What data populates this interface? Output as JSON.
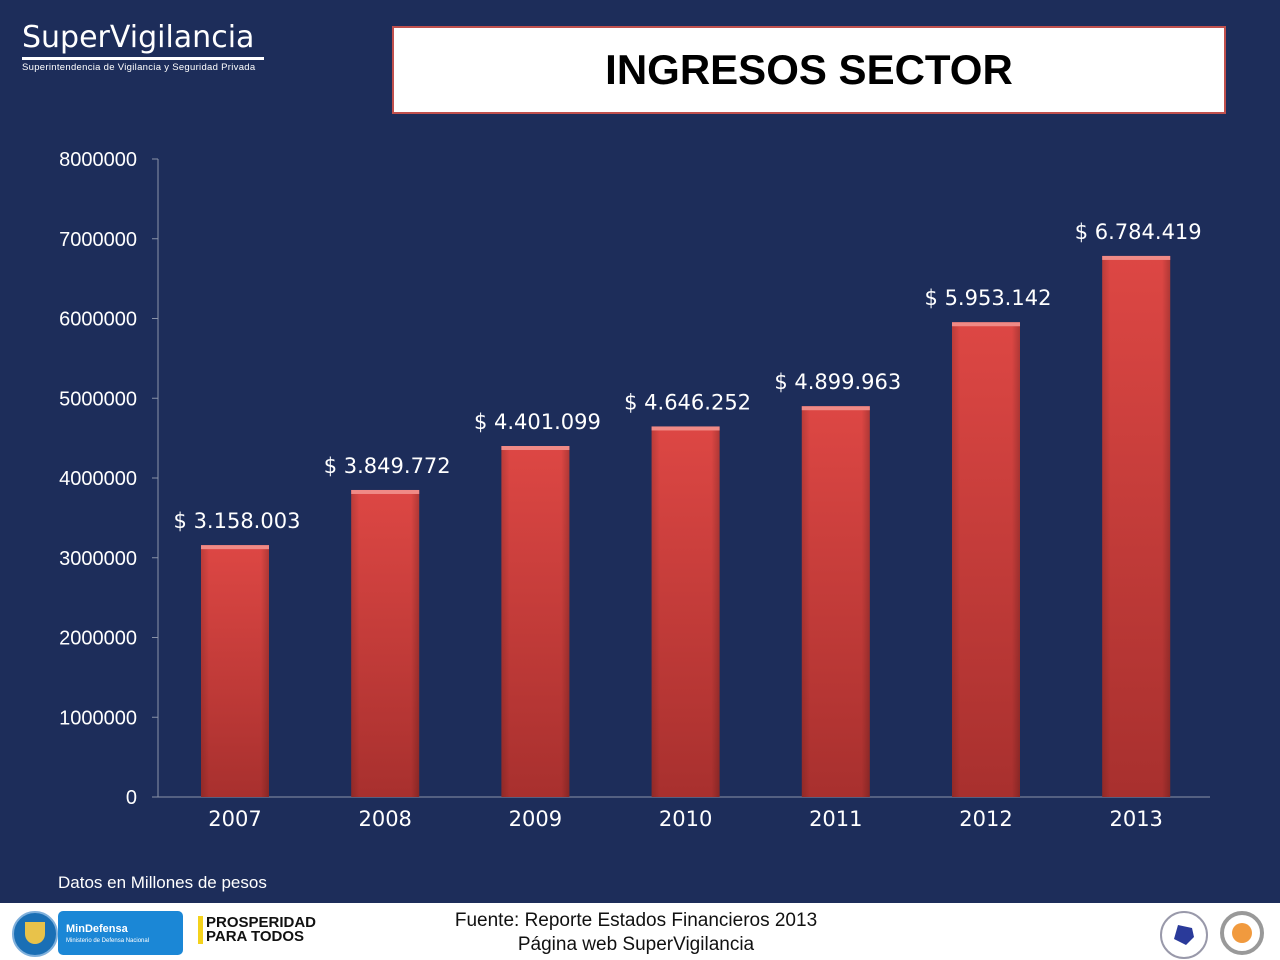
{
  "logo": {
    "name": "SuperVigilancia",
    "subtitle": "Superintendencia de Vigilancia y Seguridad Privada"
  },
  "note": "Datos en Millones de pesos",
  "footer": {
    "source_line1": "Fuente: Reporte Estados Financieros 2013",
    "source_line2": "Página web SuperVigilancia",
    "logos": [
      "Escudo República de Colombia",
      "MinDefensa - Ministerio de Defensa Nacional",
      "PROSPERIDAD PARA TODOS",
      "SGS"
    ],
    "mindefensa": "MinDefensa",
    "mindefensa_sub": "Ministerio de Defensa Nacional",
    "prosperidad": "PROSPERIDAD PARA TODOS"
  },
  "colors": {
    "background": "#1d2d5a",
    "bar": "#d64541",
    "title_border": "#c0504d"
  },
  "chart_data": {
    "type": "bar",
    "title": "INGRESOS SECTOR",
    "categories": [
      "2007",
      "2008",
      "2009",
      "2010",
      "2011",
      "2012",
      "2013"
    ],
    "values": [
      3158003,
      3849772,
      4401099,
      4646252,
      4899963,
      5953142,
      6784419
    ],
    "data_labels": [
      "$ 3.158.003",
      "$ 3.849.772",
      "$ 4.401.099",
      "$ 4.646.252",
      "$ 4.899.963",
      "$ 5.953.142",
      "$ 6.784.419"
    ],
    "ylim": [
      0,
      8000000
    ],
    "yticks": [
      "0",
      "1000000",
      "2000000",
      "3000000",
      "4000000",
      "5000000",
      "6000000",
      "7000000",
      "8000000"
    ],
    "grid": false,
    "xlabel": "",
    "ylabel": ""
  }
}
